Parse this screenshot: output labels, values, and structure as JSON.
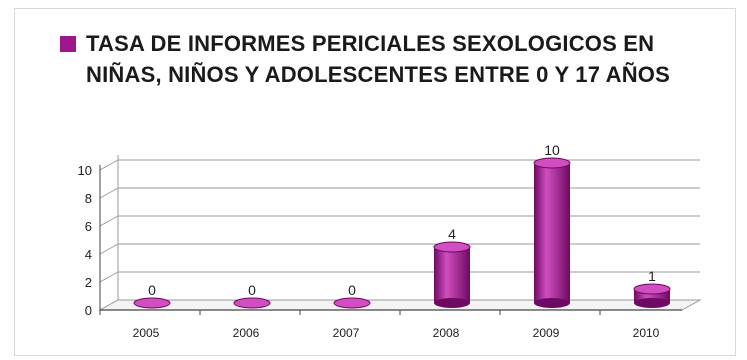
{
  "chart_data": {
    "type": "bar",
    "title": "",
    "series": [
      {
        "name": "TASA DE INFORMES PERICIALES SEXOLOGICOS EN NIÑAS, NIÑOS Y ADOLESCENTES ENTRE 0 Y 17 AÑOS",
        "values": [
          0,
          0,
          0,
          4,
          10,
          1
        ]
      }
    ],
    "categories": [
      "2005",
      "2006",
      "2007",
      "2008",
      "2009",
      "2010"
    ],
    "data_labels": [
      "0",
      "0",
      "0",
      "4",
      "10",
      "1"
    ],
    "yticks": [
      "0",
      "2",
      "4",
      "6",
      "8",
      "10"
    ],
    "ylim": [
      0,
      10
    ],
    "xlabel": "",
    "ylabel": "",
    "legend_position": "top",
    "grid": true,
    "bar_shape": "3d-cylinder",
    "colors": {
      "bar": "#a0168f",
      "bar_dark": "#6e0a63",
      "bar_light": "#d04ec0",
      "grid": "#9a9a9a"
    }
  }
}
